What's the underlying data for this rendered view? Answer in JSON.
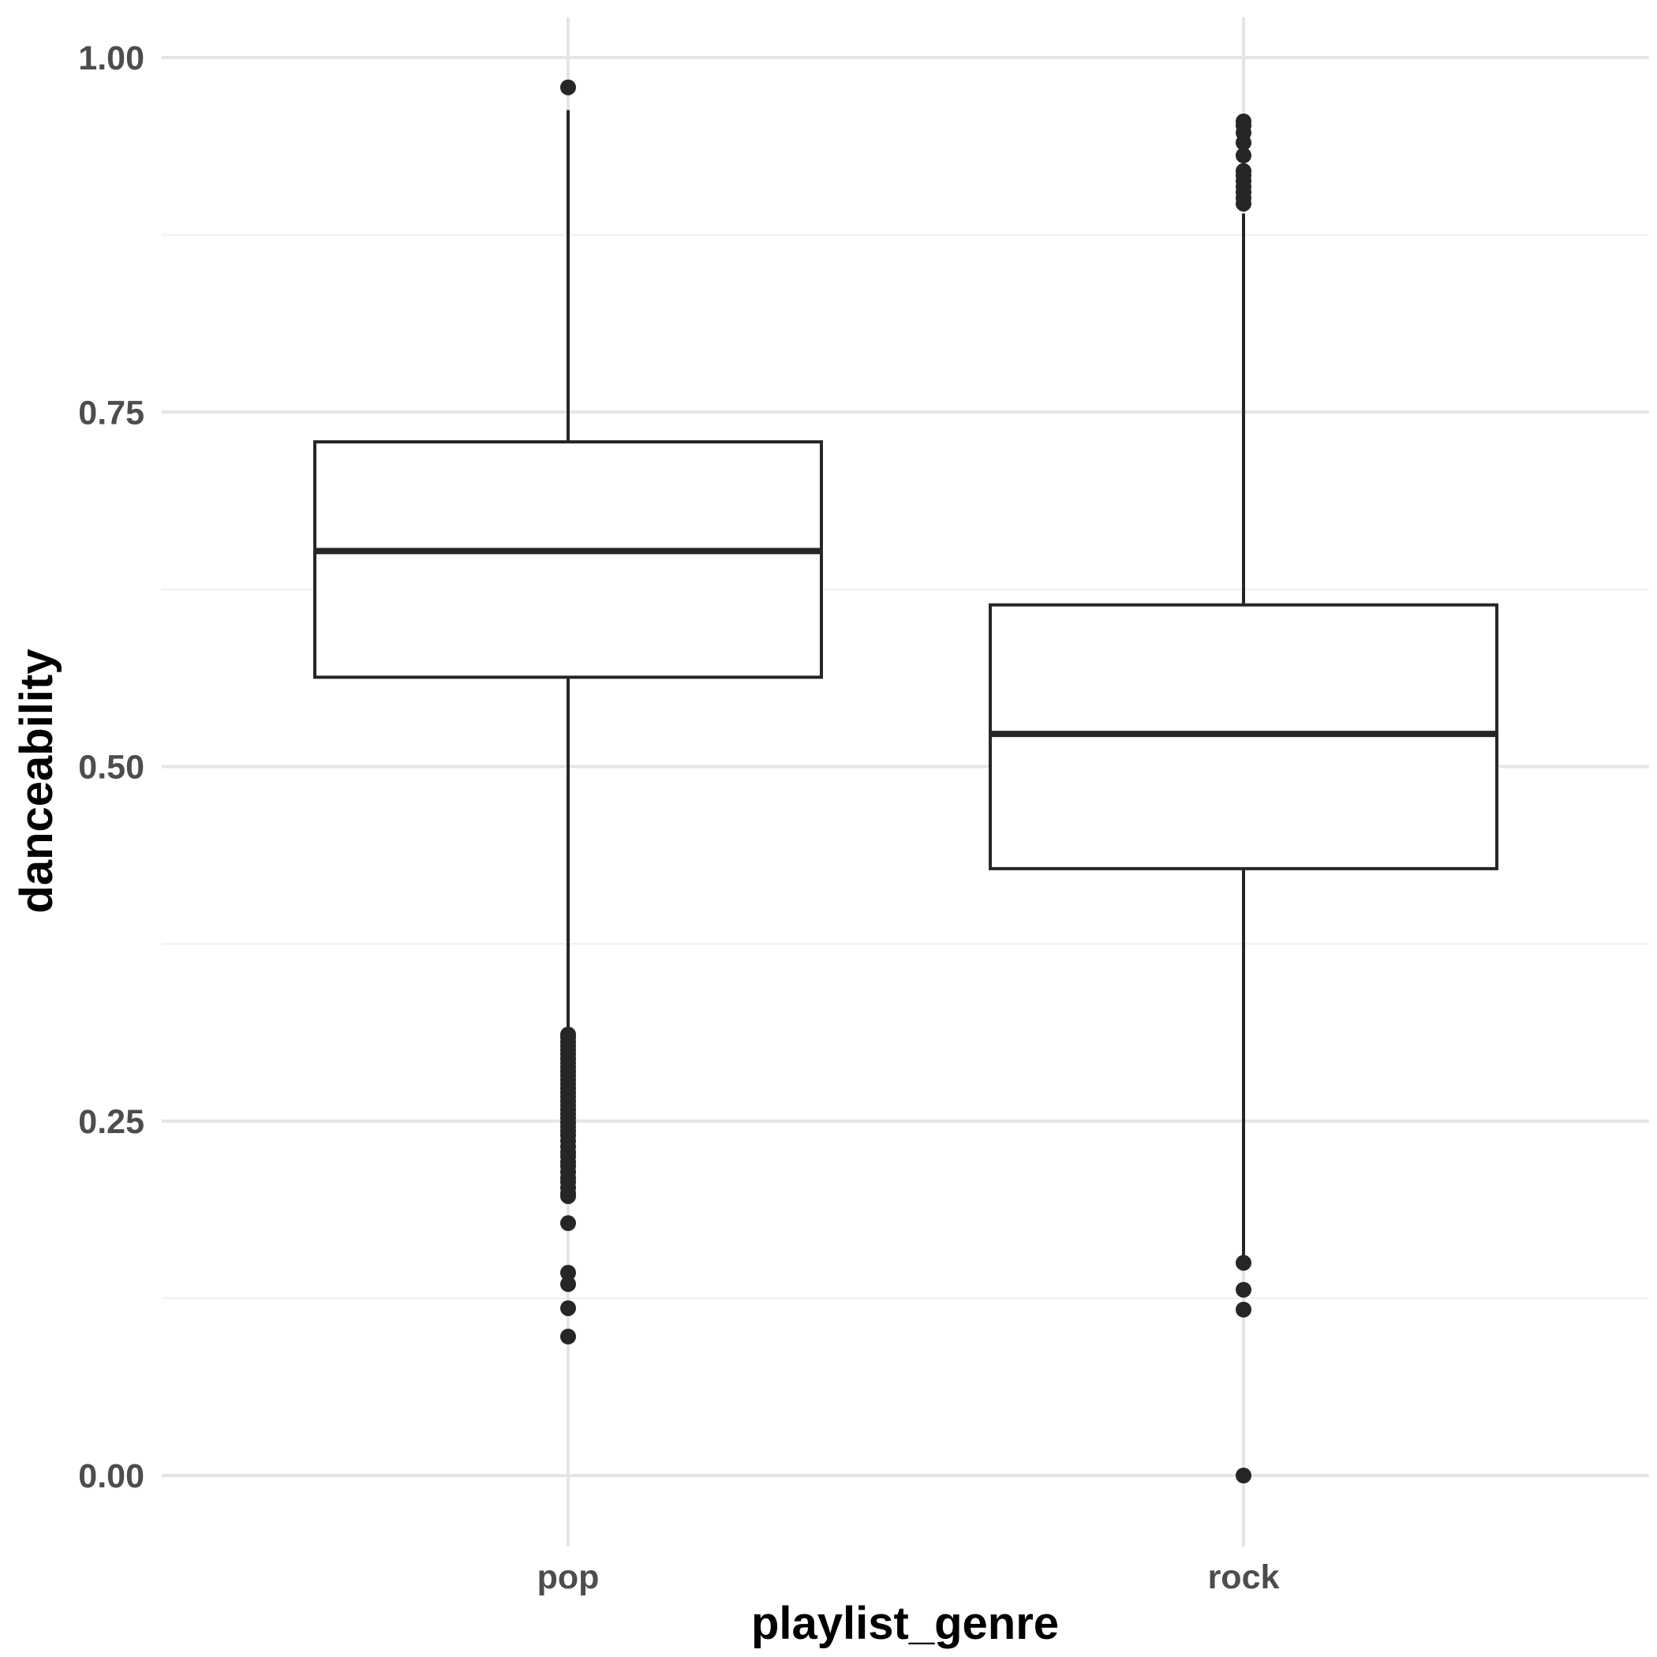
{
  "colors": {
    "background": "#ffffff",
    "major_grid": "#e5e5e5",
    "minor_grid": "#efefef",
    "box_stroke": "#262626",
    "tick_text": "#4d4d4d",
    "title_text": "#000000"
  },
  "chart_data": {
    "type": "box",
    "title": "",
    "xlabel": "playlist_genre",
    "ylabel": "danceability",
    "ylim": [
      -0.05,
      1.03
    ],
    "yticks": [
      0.0,
      0.25,
      0.5,
      0.75,
      1.0
    ],
    "ytick_labels": [
      "0.00",
      "0.25",
      "0.50",
      "0.75",
      "1.00"
    ],
    "minor_yticks": [
      0.125,
      0.375,
      0.625,
      0.875
    ],
    "categories": [
      "pop",
      "rock"
    ],
    "grid": true,
    "legend": "none",
    "boxes": [
      {
        "category": "pop",
        "whisker_low": 0.31,
        "q1": 0.563,
        "median": 0.652,
        "q3": 0.729,
        "whisker_high": 0.963,
        "outliers": [
          0.979,
          0.311,
          0.309,
          0.306,
          0.303,
          0.3,
          0.297,
          0.294,
          0.291,
          0.288,
          0.285,
          0.282,
          0.279,
          0.276,
          0.273,
          0.27,
          0.267,
          0.264,
          0.261,
          0.258,
          0.255,
          0.252,
          0.249,
          0.246,
          0.243,
          0.24,
          0.236,
          0.232,
          0.228,
          0.225,
          0.221,
          0.218,
          0.214,
          0.21,
          0.207,
          0.203,
          0.199,
          0.197,
          0.178,
          0.143,
          0.135,
          0.118,
          0.098
        ]
      },
      {
        "category": "rock",
        "whisker_low": 0.15,
        "q1": 0.428,
        "median": 0.523,
        "q3": 0.614,
        "whisker_high": 0.89,
        "outliers": [
          0.955,
          0.952,
          0.947,
          0.94,
          0.931,
          0.92,
          0.917,
          0.913,
          0.909,
          0.905,
          0.901,
          0.897,
          0.15,
          0.131,
          0.117,
          0.0
        ]
      }
    ]
  }
}
